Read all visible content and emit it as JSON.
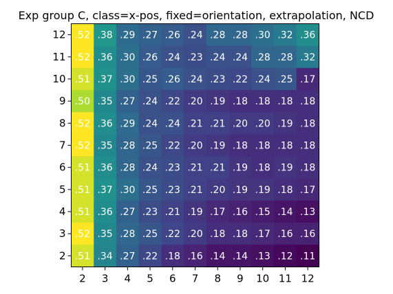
{
  "chart_data": {
    "type": "heatmap",
    "title": "Exp group C, class=x-pos, fixed=orientation, extrapolation, NCD",
    "x_ticks": [
      "2",
      "3",
      "4",
      "5",
      "6",
      "7",
      "8",
      "9",
      "10",
      "11",
      "12"
    ],
    "y_ticks": [
      "12",
      "11",
      "10",
      "9",
      "8",
      "7",
      "6",
      "5",
      "4",
      "3",
      "2"
    ],
    "value_range": [
      0.11,
      0.52
    ],
    "colormap": "viridis",
    "grid": false,
    "rows": [
      {
        "y": "12",
        "values": [
          0.52,
          0.38,
          0.29,
          0.27,
          0.26,
          0.24,
          0.28,
          0.28,
          0.3,
          0.32,
          0.36
        ],
        "labels": [
          ".52",
          ".38",
          ".29",
          ".27",
          ".26",
          ".24",
          ".28",
          ".28",
          ".30",
          ".32",
          ".36"
        ]
      },
      {
        "y": "11",
        "values": [
          0.52,
          0.36,
          0.3,
          0.26,
          0.24,
          0.23,
          0.24,
          0.24,
          0.28,
          0.28,
          0.32
        ],
        "labels": [
          ".52",
          ".36",
          ".30",
          ".26",
          ".24",
          ".23",
          ".24",
          ".24",
          ".28",
          ".28",
          ".32"
        ]
      },
      {
        "y": "10",
        "values": [
          0.51,
          0.37,
          0.3,
          0.25,
          0.26,
          0.24,
          0.23,
          0.22,
          0.24,
          0.25,
          0.17
        ],
        "labels": [
          ".51",
          ".37",
          ".30",
          ".25",
          ".26",
          ".24",
          ".23",
          ".22",
          ".24",
          ".25",
          ".17"
        ]
      },
      {
        "y": "9",
        "values": [
          0.5,
          0.35,
          0.27,
          0.24,
          0.22,
          0.2,
          0.19,
          0.18,
          0.18,
          0.18,
          0.18
        ],
        "labels": [
          ".50",
          ".35",
          ".27",
          ".24",
          ".22",
          ".20",
          ".19",
          ".18",
          ".18",
          ".18",
          ".18"
        ]
      },
      {
        "y": "8",
        "values": [
          0.52,
          0.36,
          0.29,
          0.24,
          0.24,
          0.21,
          0.21,
          0.2,
          0.2,
          0.19,
          0.18
        ],
        "labels": [
          ".52",
          ".36",
          ".29",
          ".24",
          ".24",
          ".21",
          ".21",
          ".20",
          ".20",
          ".19",
          ".18"
        ]
      },
      {
        "y": "7",
        "values": [
          0.52,
          0.35,
          0.28,
          0.25,
          0.22,
          0.2,
          0.19,
          0.18,
          0.18,
          0.18,
          0.18
        ],
        "labels": [
          ".52",
          ".35",
          ".28",
          ".25",
          ".22",
          ".20",
          ".19",
          ".18",
          ".18",
          ".18",
          ".18"
        ]
      },
      {
        "y": "6",
        "values": [
          0.51,
          0.36,
          0.28,
          0.24,
          0.23,
          0.21,
          0.21,
          0.19,
          0.18,
          0.19,
          0.18
        ],
        "labels": [
          ".51",
          ".36",
          ".28",
          ".24",
          ".23",
          ".21",
          ".21",
          ".19",
          ".18",
          ".19",
          ".18"
        ]
      },
      {
        "y": "5",
        "values": [
          0.51,
          0.37,
          0.3,
          0.25,
          0.23,
          0.21,
          0.2,
          0.19,
          0.19,
          0.18,
          0.17
        ],
        "labels": [
          ".51",
          ".37",
          ".30",
          ".25",
          ".23",
          ".21",
          ".20",
          ".19",
          ".19",
          ".18",
          ".17"
        ]
      },
      {
        "y": "4",
        "values": [
          0.51,
          0.36,
          0.27,
          0.23,
          0.21,
          0.19,
          0.17,
          0.16,
          0.15,
          0.14,
          0.13
        ],
        "labels": [
          ".51",
          ".36",
          ".27",
          ".23",
          ".21",
          ".19",
          ".17",
          ".16",
          ".15",
          ".14",
          ".13"
        ]
      },
      {
        "y": "3",
        "values": [
          0.52,
          0.35,
          0.28,
          0.25,
          0.22,
          0.2,
          0.18,
          0.18,
          0.17,
          0.16,
          0.16
        ],
        "labels": [
          ".52",
          ".35",
          ".28",
          ".25",
          ".22",
          ".20",
          ".18",
          ".18",
          ".17",
          ".16",
          ".16"
        ]
      },
      {
        "y": "2",
        "values": [
          0.51,
          0.34,
          0.27,
          0.22,
          0.18,
          0.16,
          0.14,
          0.14,
          0.13,
          0.12,
          0.11
        ],
        "labels": [
          ".51",
          ".34",
          ".27",
          ".22",
          ".18",
          ".16",
          ".14",
          ".14",
          ".13",
          ".12",
          ".11"
        ]
      }
    ]
  }
}
